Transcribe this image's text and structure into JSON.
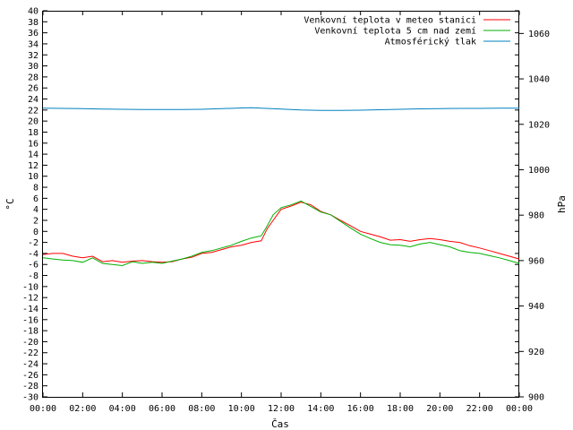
{
  "chart_data": {
    "type": "line",
    "xlabel": "Čas",
    "ylabel": "°C",
    "y2label": "hPa",
    "xlim": [
      0,
      24
    ],
    "ylim": [
      -30,
      40
    ],
    "y2lim": [
      900,
      1070
    ],
    "x_ticks": [
      "00:00",
      "02:00",
      "04:00",
      "06:00",
      "08:00",
      "10:00",
      "12:00",
      "14:00",
      "16:00",
      "18:00",
      "20:00",
      "22:00",
      "00:00"
    ],
    "y_ticks": [
      40,
      38,
      36,
      34,
      32,
      30,
      28,
      26,
      24,
      22,
      20,
      18,
      16,
      14,
      12,
      10,
      8,
      6,
      4,
      2,
      0,
      -2,
      -4,
      -6,
      -8,
      -10,
      -12,
      -14,
      -16,
      -18,
      -20,
      -22,
      -24,
      -26,
      -28,
      -30
    ],
    "y2_ticks": [
      1060,
      1040,
      1020,
      1000,
      980,
      960,
      940,
      920,
      900
    ],
    "legend_position": "top-right",
    "grid": false,
    "series": [
      {
        "name": "Venkovní teplota v meteo stanici",
        "color": "#ff0000",
        "axis": "left",
        "x": [
          0,
          0.5,
          1,
          1.5,
          2,
          2.5,
          3,
          3.5,
          4,
          4.5,
          5,
          5.5,
          6,
          6.5,
          7,
          7.5,
          8,
          8.5,
          9,
          9.5,
          10,
          10.5,
          11,
          11.3,
          11.6,
          12,
          12.5,
          13,
          13.5,
          14,
          14.5,
          15,
          15.5,
          16,
          16.5,
          17,
          17.5,
          18,
          18.5,
          19,
          19.5,
          20,
          20.5,
          21,
          21.5,
          22,
          22.5,
          23,
          23.5,
          24
        ],
        "y": [
          -4.2,
          -4.0,
          -4.0,
          -4.5,
          -4.8,
          -4.5,
          -5.5,
          -5.3,
          -5.6,
          -5.4,
          -5.3,
          -5.5,
          -5.6,
          -5.5,
          -5.0,
          -4.7,
          -4.0,
          -3.8,
          -3.3,
          -2.8,
          -2.5,
          -2.0,
          -1.7,
          0.5,
          2.0,
          4.0,
          4.6,
          5.3,
          4.8,
          3.6,
          3.0,
          2.0,
          1.0,
          0.0,
          -0.5,
          -1.0,
          -1.6,
          -1.5,
          -1.8,
          -1.5,
          -1.3,
          -1.5,
          -1.8,
          -2.0,
          -2.6,
          -3.0,
          -3.5,
          -4.0,
          -4.5,
          -5.0
        ]
      },
      {
        "name": "Venkovní teplota 5 cm nad zemí",
        "color": "#00b000",
        "axis": "left",
        "x": [
          0,
          0.5,
          1,
          1.5,
          2,
          2.5,
          3,
          3.5,
          4,
          4.5,
          5,
          5.5,
          6,
          6.5,
          7,
          7.5,
          8,
          8.5,
          9,
          9.5,
          10,
          10.5,
          11,
          11.3,
          11.6,
          12,
          12.5,
          13,
          13.5,
          14,
          14.5,
          15,
          15.5,
          16,
          16.5,
          17,
          17.5,
          18,
          18.5,
          19,
          19.5,
          20,
          20.5,
          21,
          21.5,
          22,
          22.5,
          23,
          23.5,
          24
        ],
        "y": [
          -4.8,
          -5.0,
          -5.2,
          -5.3,
          -5.6,
          -4.8,
          -5.8,
          -6.0,
          -6.2,
          -5.5,
          -5.8,
          -5.6,
          -5.8,
          -5.4,
          -5.0,
          -4.5,
          -3.8,
          -3.5,
          -3.0,
          -2.5,
          -1.8,
          -1.2,
          -0.8,
          1.0,
          3.0,
          4.3,
          4.8,
          5.5,
          4.5,
          3.5,
          3.0,
          1.8,
          0.6,
          -0.5,
          -1.3,
          -2.0,
          -2.4,
          -2.5,
          -2.8,
          -2.3,
          -2.0,
          -2.4,
          -2.8,
          -3.5,
          -3.8,
          -4.0,
          -4.4,
          -4.8,
          -5.3,
          -5.8
        ]
      },
      {
        "name": "Atmosférický tlak",
        "color": "#0080c0",
        "axis": "right",
        "x": [
          0,
          1,
          2,
          3,
          4,
          5,
          6,
          7,
          8,
          9,
          10,
          10.5,
          11,
          12,
          13,
          14,
          15,
          16,
          17,
          18,
          19,
          20,
          21,
          22,
          23,
          24
        ],
        "y": [
          1027.1,
          1027.0,
          1026.9,
          1026.7,
          1026.6,
          1026.5,
          1026.5,
          1026.5,
          1026.6,
          1026.9,
          1027.2,
          1027.3,
          1027.1,
          1026.7,
          1026.3,
          1026.1,
          1026.1,
          1026.2,
          1026.4,
          1026.6,
          1026.8,
          1026.9,
          1027.0,
          1027.0,
          1027.1,
          1027.1
        ]
      }
    ]
  }
}
